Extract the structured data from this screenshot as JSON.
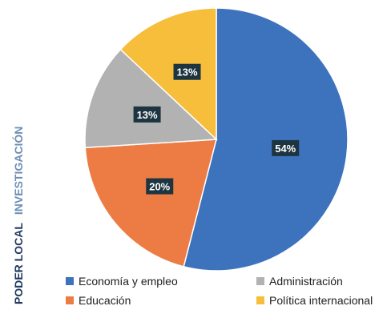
{
  "side_label": {
    "brand": "PODER LOCAL",
    "section": "INVESTIGACIÓN"
  },
  "chart_data": {
    "type": "pie",
    "title": "",
    "slices": [
      {
        "label": "Economía y empleo",
        "value": 54,
        "display": "54%",
        "color": "#3d73bd"
      },
      {
        "label": "Educación",
        "value": 20,
        "display": "20%",
        "color": "#ec7c43"
      },
      {
        "label": "Administración",
        "value": 13,
        "display": "13%",
        "color": "#b2b2b2"
      },
      {
        "label": "Política internacional",
        "value": 13,
        "display": "13%",
        "color": "#f6be3b"
      }
    ],
    "legend": {
      "placement": "bottom",
      "items": [
        "Economía y empleo",
        "Administración",
        "Educación",
        "Política internacional"
      ]
    },
    "label_box_color": "#1d3540"
  }
}
